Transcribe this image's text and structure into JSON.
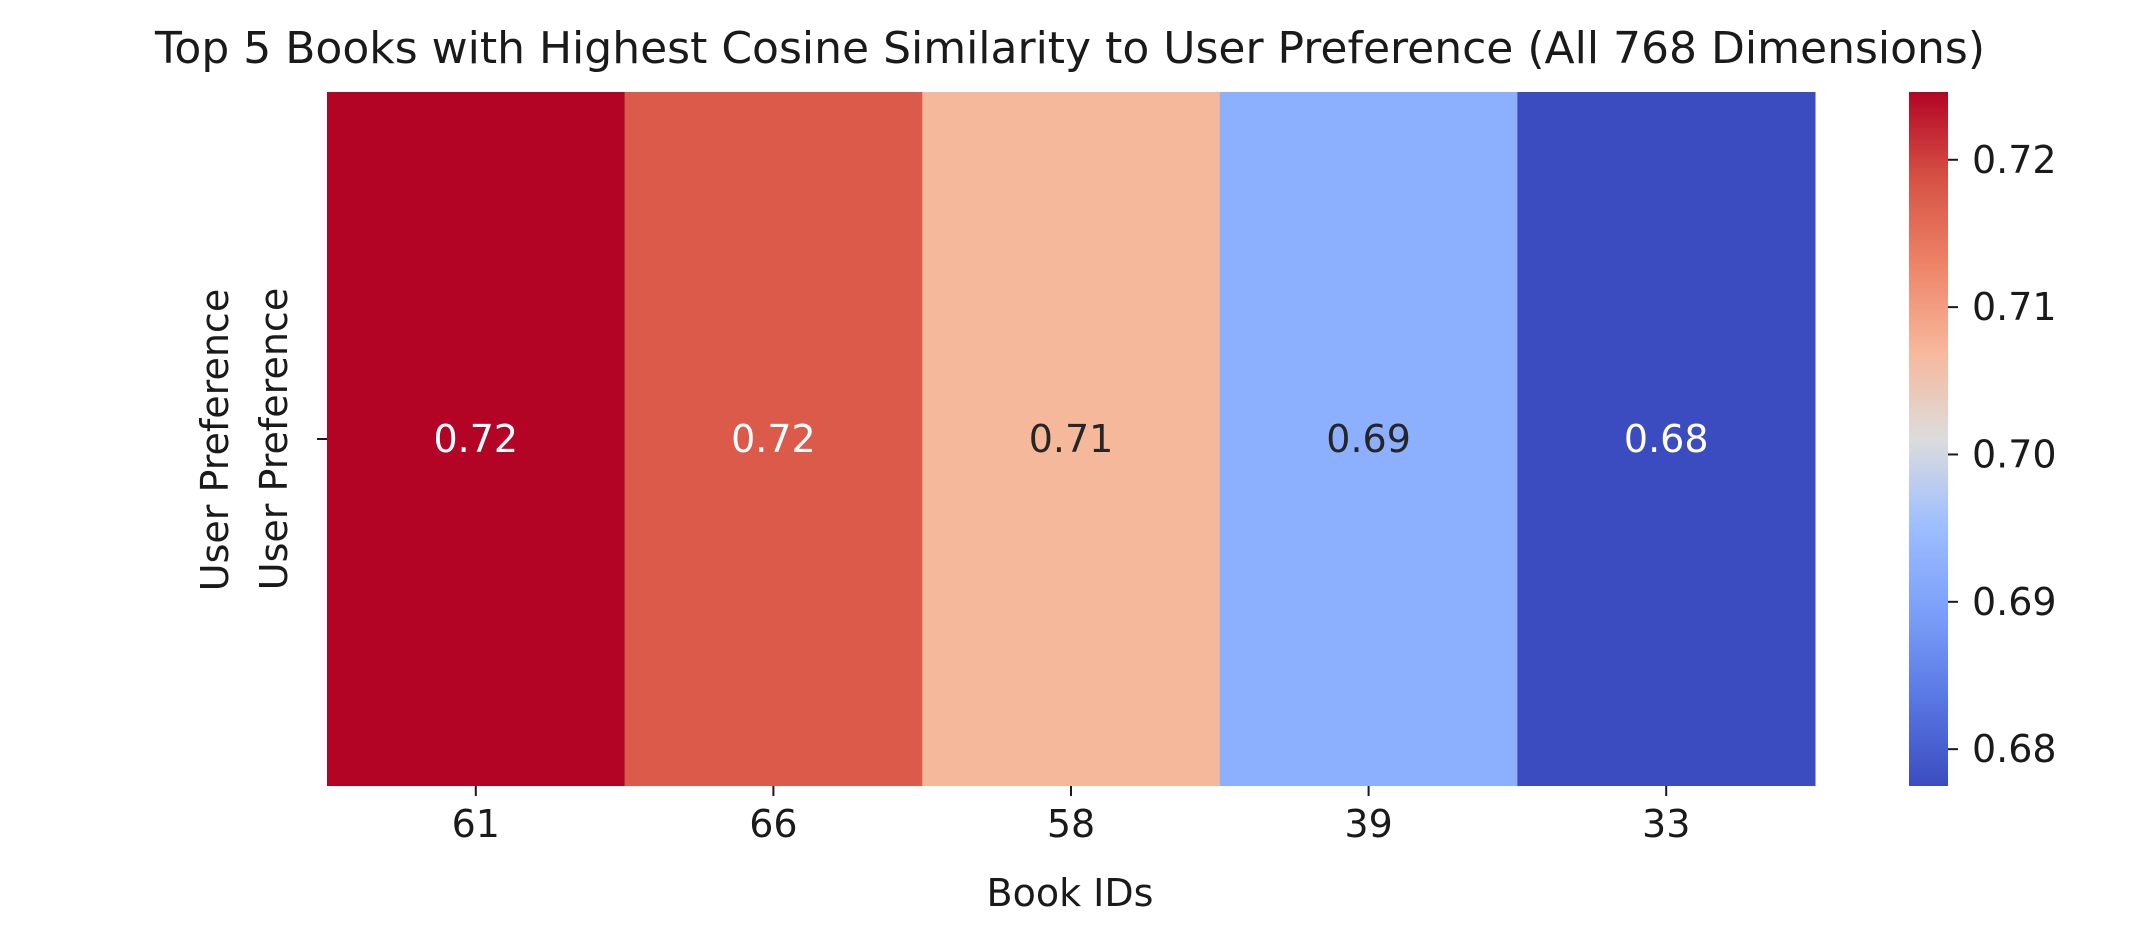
{
  "chart_data": {
    "type": "heatmap",
    "title": "Top 5 Books with Highest Cosine Similarity to User Preference (All 768 Dimensions)",
    "xlabel": "Book IDs",
    "ylabel": "User Preference",
    "row_labels": [
      "User Preference"
    ],
    "categories": [
      "61",
      "66",
      "58",
      "39",
      "33"
    ],
    "values": [
      [
        0.7246,
        0.7199,
        0.7103,
        0.6895,
        0.6775
      ]
    ],
    "annotations": [
      [
        "0.72",
        "0.72",
        "0.71",
        "0.69",
        "0.68"
      ]
    ],
    "colormap": "coolwarm",
    "cell_colors": [
      "#b40426",
      "#dc5a4a",
      "#f6b89b",
      "#8caffe",
      "#3b4cc0"
    ],
    "colorbar": {
      "range": [
        0.6775,
        0.7246
      ],
      "ticks": [
        0.68,
        0.69,
        0.7,
        0.71,
        0.72
      ],
      "tick_labels": [
        "0.68",
        "0.69",
        "0.70",
        "0.71",
        "0.72"
      ]
    },
    "grid": false,
    "legend": "colorbar-right"
  }
}
